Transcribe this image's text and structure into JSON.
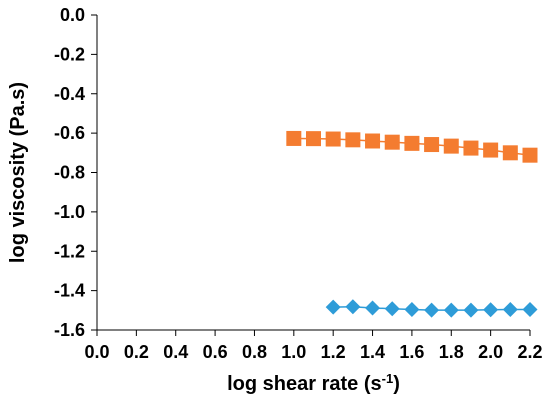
{
  "chart_data": {
    "type": "line",
    "title": "",
    "xlabel": "log shear rate (s",
    "xlabel_superscript": "-1",
    "xlabel_suffix": ")",
    "ylabel": "log viscosity (Pa.s)",
    "xlim": [
      0.0,
      2.2
    ],
    "ylim": [
      -1.6,
      0.0
    ],
    "xticks": [
      "0.0",
      "0.2",
      "0.4",
      "0.6",
      "0.8",
      "1.0",
      "1.2",
      "1.4",
      "1.6",
      "1.8",
      "2.0",
      "2.2"
    ],
    "yticks": [
      "0.0",
      "-0.2",
      "-0.4",
      "-0.6",
      "-0.8",
      "-1.0",
      "-1.2",
      "-1.4",
      "-1.6"
    ],
    "grid": false,
    "series": [
      {
        "marker": "square",
        "color": "#F47C30",
        "x": [
          1.0,
          1.1,
          1.2,
          1.3,
          1.4,
          1.5,
          1.6,
          1.7,
          1.8,
          1.9,
          2.0,
          2.1,
          2.2
        ],
        "y": [
          -0.627,
          -0.628,
          -0.63,
          -0.634,
          -0.64,
          -0.646,
          -0.652,
          -0.658,
          -0.666,
          -0.676,
          -0.686,
          -0.7,
          -0.712
        ]
      },
      {
        "marker": "diamond",
        "color": "#2E9CD8",
        "x": [
          1.2,
          1.3,
          1.4,
          1.5,
          1.6,
          1.7,
          1.8,
          1.9,
          2.0,
          2.1,
          2.2
        ],
        "y": [
          -1.484,
          -1.482,
          -1.488,
          -1.492,
          -1.496,
          -1.499,
          -1.499,
          -1.499,
          -1.497,
          -1.496,
          -1.496
        ]
      }
    ]
  }
}
